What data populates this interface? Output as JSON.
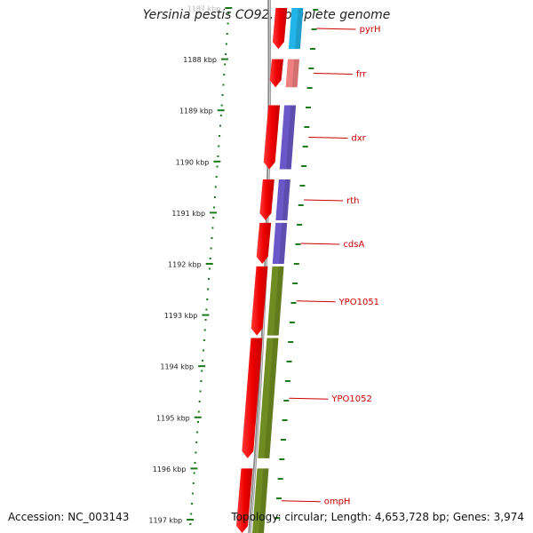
{
  "title": "Yersinia pestis CO92, complete genome",
  "accession": "Accession: NC_003143",
  "topology": "Topology: circular; Length: 4,653,728 bp; Genes: 3,974",
  "ticks": [
    {
      "label": "1187 kbp",
      "faded": true
    },
    {
      "label": "1188 kbp"
    },
    {
      "label": "1189 kbp"
    },
    {
      "label": "1190 kbp"
    },
    {
      "label": "1191 kbp"
    },
    {
      "label": "1192 kbp"
    },
    {
      "label": "1193 kbp"
    },
    {
      "label": "1194 kbp"
    },
    {
      "label": "1195 kbp"
    },
    {
      "label": "1196 kbp"
    },
    {
      "label": "1197 kbp"
    }
  ],
  "genes": [
    {
      "name": "pyrH",
      "start_kbp": 1187.0,
      "end_kbp": 1187.8,
      "cog_color": "#22b4e8"
    },
    {
      "name": "frr",
      "start_kbp": 1188.0,
      "end_kbp": 1188.55,
      "cog_color": "#ef7f7f"
    },
    {
      "name": "dxr",
      "start_kbp": 1188.9,
      "end_kbp": 1190.15,
      "cog_color": "#6a58c8"
    },
    {
      "name": "rth",
      "start_kbp": 1190.35,
      "end_kbp": 1191.15,
      "cog_color": "#6a58c8"
    },
    {
      "name": "cdsA",
      "start_kbp": 1191.2,
      "end_kbp": 1192.0,
      "cog_color": "#6a58c8"
    },
    {
      "name": "YPO1051",
      "start_kbp": 1192.05,
      "end_kbp": 1193.4,
      "cog_color": "#6f8c22"
    },
    {
      "name": "YPO1052",
      "start_kbp": 1193.45,
      "end_kbp": 1195.8,
      "cog_color": "#6f8c22"
    },
    {
      "name": "ompH",
      "start_kbp": 1196.0,
      "end_kbp": 1197.4,
      "cog_color": "#6f8c22"
    }
  ],
  "colors": {
    "cds": "#ee1111",
    "label": "#cc0000",
    "tick": "#1a7a1a",
    "backbone": "#888888"
  }
}
